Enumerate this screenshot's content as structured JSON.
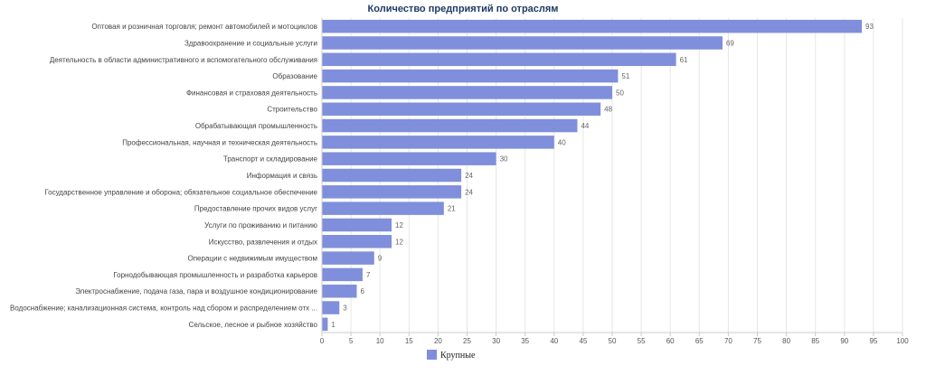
{
  "chart_data": {
    "type": "bar",
    "orientation": "horizontal",
    "title": "Количество предприятий по отраслям",
    "categories": [
      "Оптовая и розничная торговля; ремонт автомобилей и мотоциклов",
      "Здравоохранение и социальные услуги",
      "Деятельность в области административного и вспомогательного обслуживания",
      "Образование",
      "Финансовая и страховая деятельность",
      "Строительство",
      "Обрабатывающая промышленность",
      "Профессиональная, научная и техническая деятельность",
      "Транспорт и складирование",
      "Информация и связь",
      "Государственное управление и оборона; обязательное социальное обеспечение",
      "Предоставление прочих видов услуг",
      "Услуги по проживанию и питанию",
      "Искусство, развлечения и отдых",
      "Операции с недвижимым имуществом",
      "Горнодобывающая промышленность и разработка карьеров",
      "Электроснабжение, подача газа, пара и воздушное кондиционирование",
      "Водоснабжение; канализационная система, контроль над сбором и распределением отх ...",
      "Сельское, лесное и рыбное хозяйство"
    ],
    "series": [
      {
        "name": "Крупные",
        "color": "#7f8fdb",
        "values": [
          93,
          69,
          61,
          51,
          50,
          48,
          44,
          40,
          30,
          24,
          24,
          21,
          12,
          12,
          9,
          7,
          6,
          3,
          1
        ]
      }
    ],
    "xlim": [
      0,
      100
    ],
    "xticks": [
      0,
      5,
      10,
      15,
      20,
      25,
      30,
      35,
      40,
      45,
      50,
      55,
      60,
      65,
      70,
      75,
      80,
      85,
      90,
      95,
      100
    ],
    "grid": true,
    "data_labels": true,
    "legend_position": "bottom-center"
  }
}
